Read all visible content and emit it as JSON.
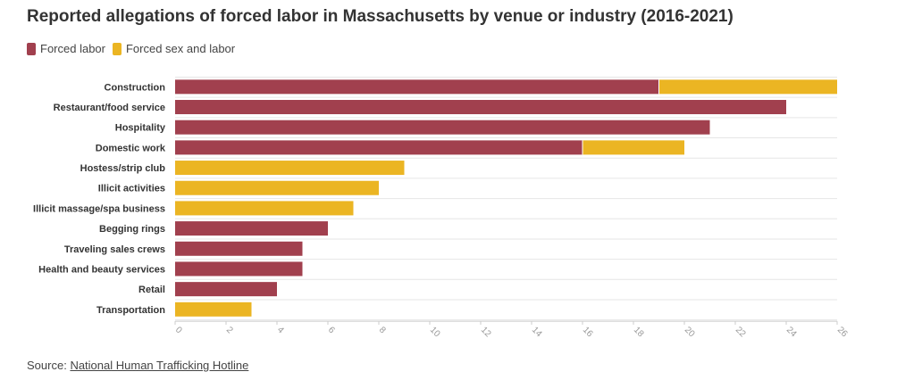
{
  "title": "Reported allegations of forced labor in Massachusetts by venue or industry (2016-2021)",
  "legend": [
    {
      "name": "Forced labor",
      "color": "#a1404e"
    },
    {
      "name": "Forced sex and labor",
      "color": "#ebb523"
    }
  ],
  "source": {
    "label": "Source:",
    "link_text": "National Human Trafficking Hotline"
  },
  "chart_data": {
    "type": "bar",
    "orientation": "horizontal",
    "stacked": true,
    "categories": [
      "Construction",
      "Restaurant/food service",
      "Hospitality",
      "Domestic work",
      "Hostess/strip club",
      "Illicit activities",
      "Illicit massage/spa business",
      "Begging rings",
      "Traveling sales crews",
      "Health and beauty services",
      "Retail",
      "Transportation"
    ],
    "series": [
      {
        "name": "Forced labor",
        "color": "#a1404e",
        "values": [
          19,
          24,
          21,
          16,
          0,
          0,
          0,
          6,
          5,
          5,
          4,
          0
        ]
      },
      {
        "name": "Forced sex and labor",
        "color": "#ebb523",
        "values": [
          7,
          0,
          0,
          4,
          9,
          8,
          7,
          0,
          0,
          0,
          0,
          3
        ]
      }
    ],
    "xlim": [
      0,
      26
    ],
    "xticks": [
      0,
      2,
      4,
      6,
      8,
      10,
      12,
      14,
      16,
      18,
      20,
      22,
      24,
      26
    ],
    "grid": true,
    "legend_position": "top-left"
  }
}
